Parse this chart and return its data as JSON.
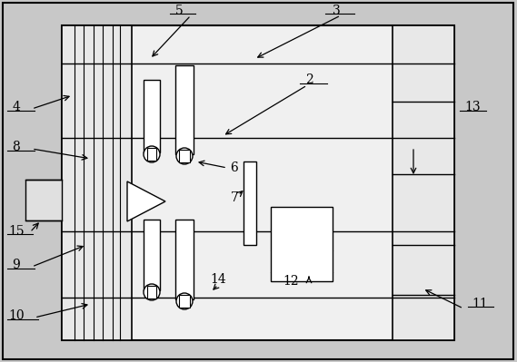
{
  "figsize": [
    5.69,
    3.99
  ],
  "dpi": 100,
  "bg": "#c8c8c8",
  "white": "#ffffff",
  "light": "#f0f0f0",
  "panel_bg": "#e0e0e0"
}
